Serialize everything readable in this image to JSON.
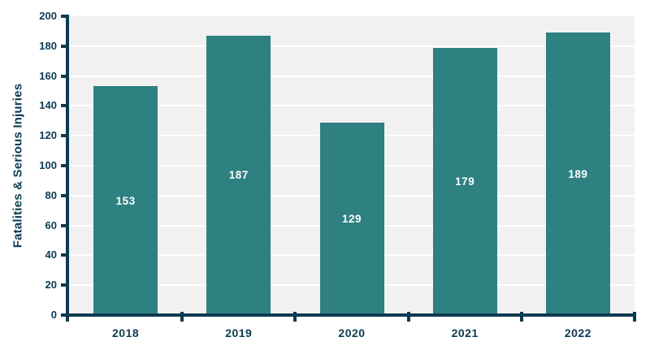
{
  "chart_data": {
    "type": "bar",
    "title": "",
    "categories": [
      "2018",
      "2019",
      "2020",
      "2021",
      "2022"
    ],
    "values": [
      153,
      187,
      129,
      179,
      189
    ],
    "bar_value_labels": [
      "153",
      "187",
      "129",
      "179",
      "189"
    ],
    "xlabel": "",
    "ylabel": "Fatalities & Serious Injuries",
    "ylim": [
      0,
      200
    ],
    "ytick_interval": 20,
    "ytick_labels": [
      "0",
      "20",
      "40",
      "60",
      "80",
      "100",
      "120",
      "140",
      "160",
      "180",
      "200"
    ],
    "grid": "horizontal-gridlines-on",
    "legend": "none",
    "colors": {
      "bar": "#2e8081",
      "axis": "#0d3a52",
      "tick_label": "#0d3a52",
      "axis_title": "#0d3a52",
      "bar_label": "#ffffff",
      "plot_background": "#f1f1f2",
      "gridline": "#ffffff",
      "page_background": "#ffffff"
    }
  }
}
